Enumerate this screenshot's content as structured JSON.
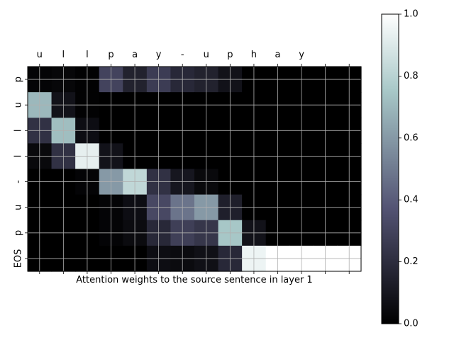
{
  "chart_data": {
    "type": "heatmap",
    "xlabel": "Attention weights to the source sentence in layer 1",
    "ylabel": "",
    "x_tick_labels": [
      "u",
      "l",
      "l",
      "p",
      "a",
      "y",
      "-",
      "u",
      "p",
      "h",
      "a",
      "y",
      "",
      ""
    ],
    "y_tick_labels": [
      "p",
      "u",
      "l",
      "l",
      "-",
      "u",
      "p",
      "EOS"
    ],
    "colormap": "bone",
    "grid": true,
    "colorbar": {
      "range": [
        0.0,
        1.0
      ],
      "ticks": [
        0.0,
        0.2,
        0.4,
        0.6,
        0.8,
        1.0
      ],
      "tick_labels": [
        "0.0",
        "0.2",
        "0.4",
        "0.6",
        "0.8",
        "1.0"
      ]
    },
    "values": [
      [
        0.02,
        0.03,
        0.01,
        0.3,
        0.15,
        0.27,
        0.18,
        0.15,
        0.08,
        0.0,
        0.0,
        0.0,
        0.0,
        0.0
      ],
      [
        0.7,
        0.08,
        0.01,
        0.0,
        0.0,
        0.0,
        0.0,
        0.0,
        0.0,
        0.0,
        0.0,
        0.0,
        0.0,
        0.0
      ],
      [
        0.22,
        0.72,
        0.06,
        0.0,
        0.0,
        0.0,
        0.0,
        0.0,
        0.0,
        0.0,
        0.0,
        0.0,
        0.0,
        0.0
      ],
      [
        0.04,
        0.22,
        0.93,
        0.08,
        0.0,
        0.0,
        0.0,
        0.0,
        0.0,
        0.0,
        0.0,
        0.0,
        0.0,
        0.0
      ],
      [
        0.0,
        0.0,
        0.02,
        0.6,
        0.82,
        0.22,
        0.1,
        0.04,
        0.0,
        0.0,
        0.0,
        0.0,
        0.0,
        0.0
      ],
      [
        0.0,
        0.0,
        0.0,
        0.02,
        0.06,
        0.32,
        0.48,
        0.6,
        0.14,
        0.0,
        0.0,
        0.0,
        0.0,
        0.0
      ],
      [
        0.0,
        0.0,
        0.0,
        0.02,
        0.05,
        0.18,
        0.28,
        0.24,
        0.75,
        0.08,
        0.0,
        0.0,
        0.0,
        0.0
      ],
      [
        0.0,
        0.0,
        0.0,
        0.0,
        0.0,
        0.06,
        0.05,
        0.07,
        0.18,
        0.95,
        1.0,
        1.0,
        1.0,
        1.0
      ]
    ]
  }
}
